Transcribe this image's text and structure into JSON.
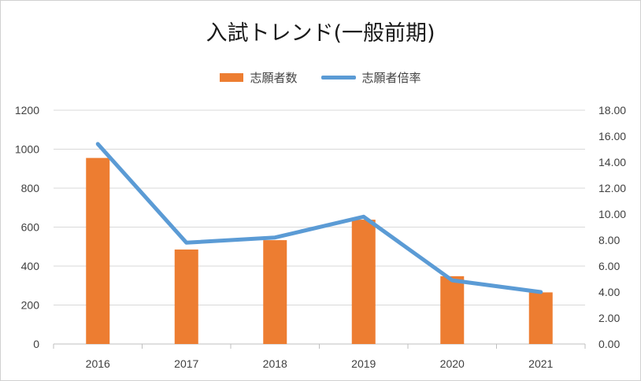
{
  "chart_data": {
    "type": "bar",
    "title": "入試トレンド(一般前期)",
    "categories": [
      "2016",
      "2017",
      "2018",
      "2019",
      "2020",
      "2021"
    ],
    "series": [
      {
        "name": "志願者数",
        "type": "bar",
        "axis": "left",
        "values": [
          955,
          485,
          533,
          638,
          348,
          265
        ],
        "color": "#ed7d31"
      },
      {
        "name": "志願者倍率",
        "type": "line",
        "axis": "right",
        "values": [
          15.4,
          7.8,
          8.2,
          9.8,
          4.9,
          4.0
        ],
        "color": "#5b9bd5"
      }
    ],
    "y_left": {
      "min": 0,
      "max": 1200,
      "ticks": [
        "0",
        "200",
        "400",
        "600",
        "800",
        "1000",
        "1200"
      ]
    },
    "y_right": {
      "min": 0,
      "max": 18,
      "ticks": [
        "0.00",
        "2.00",
        "4.00",
        "6.00",
        "8.00",
        "10.00",
        "12.00",
        "14.00",
        "16.00",
        "18.00"
      ]
    },
    "grid": true,
    "legend": "top-center"
  }
}
